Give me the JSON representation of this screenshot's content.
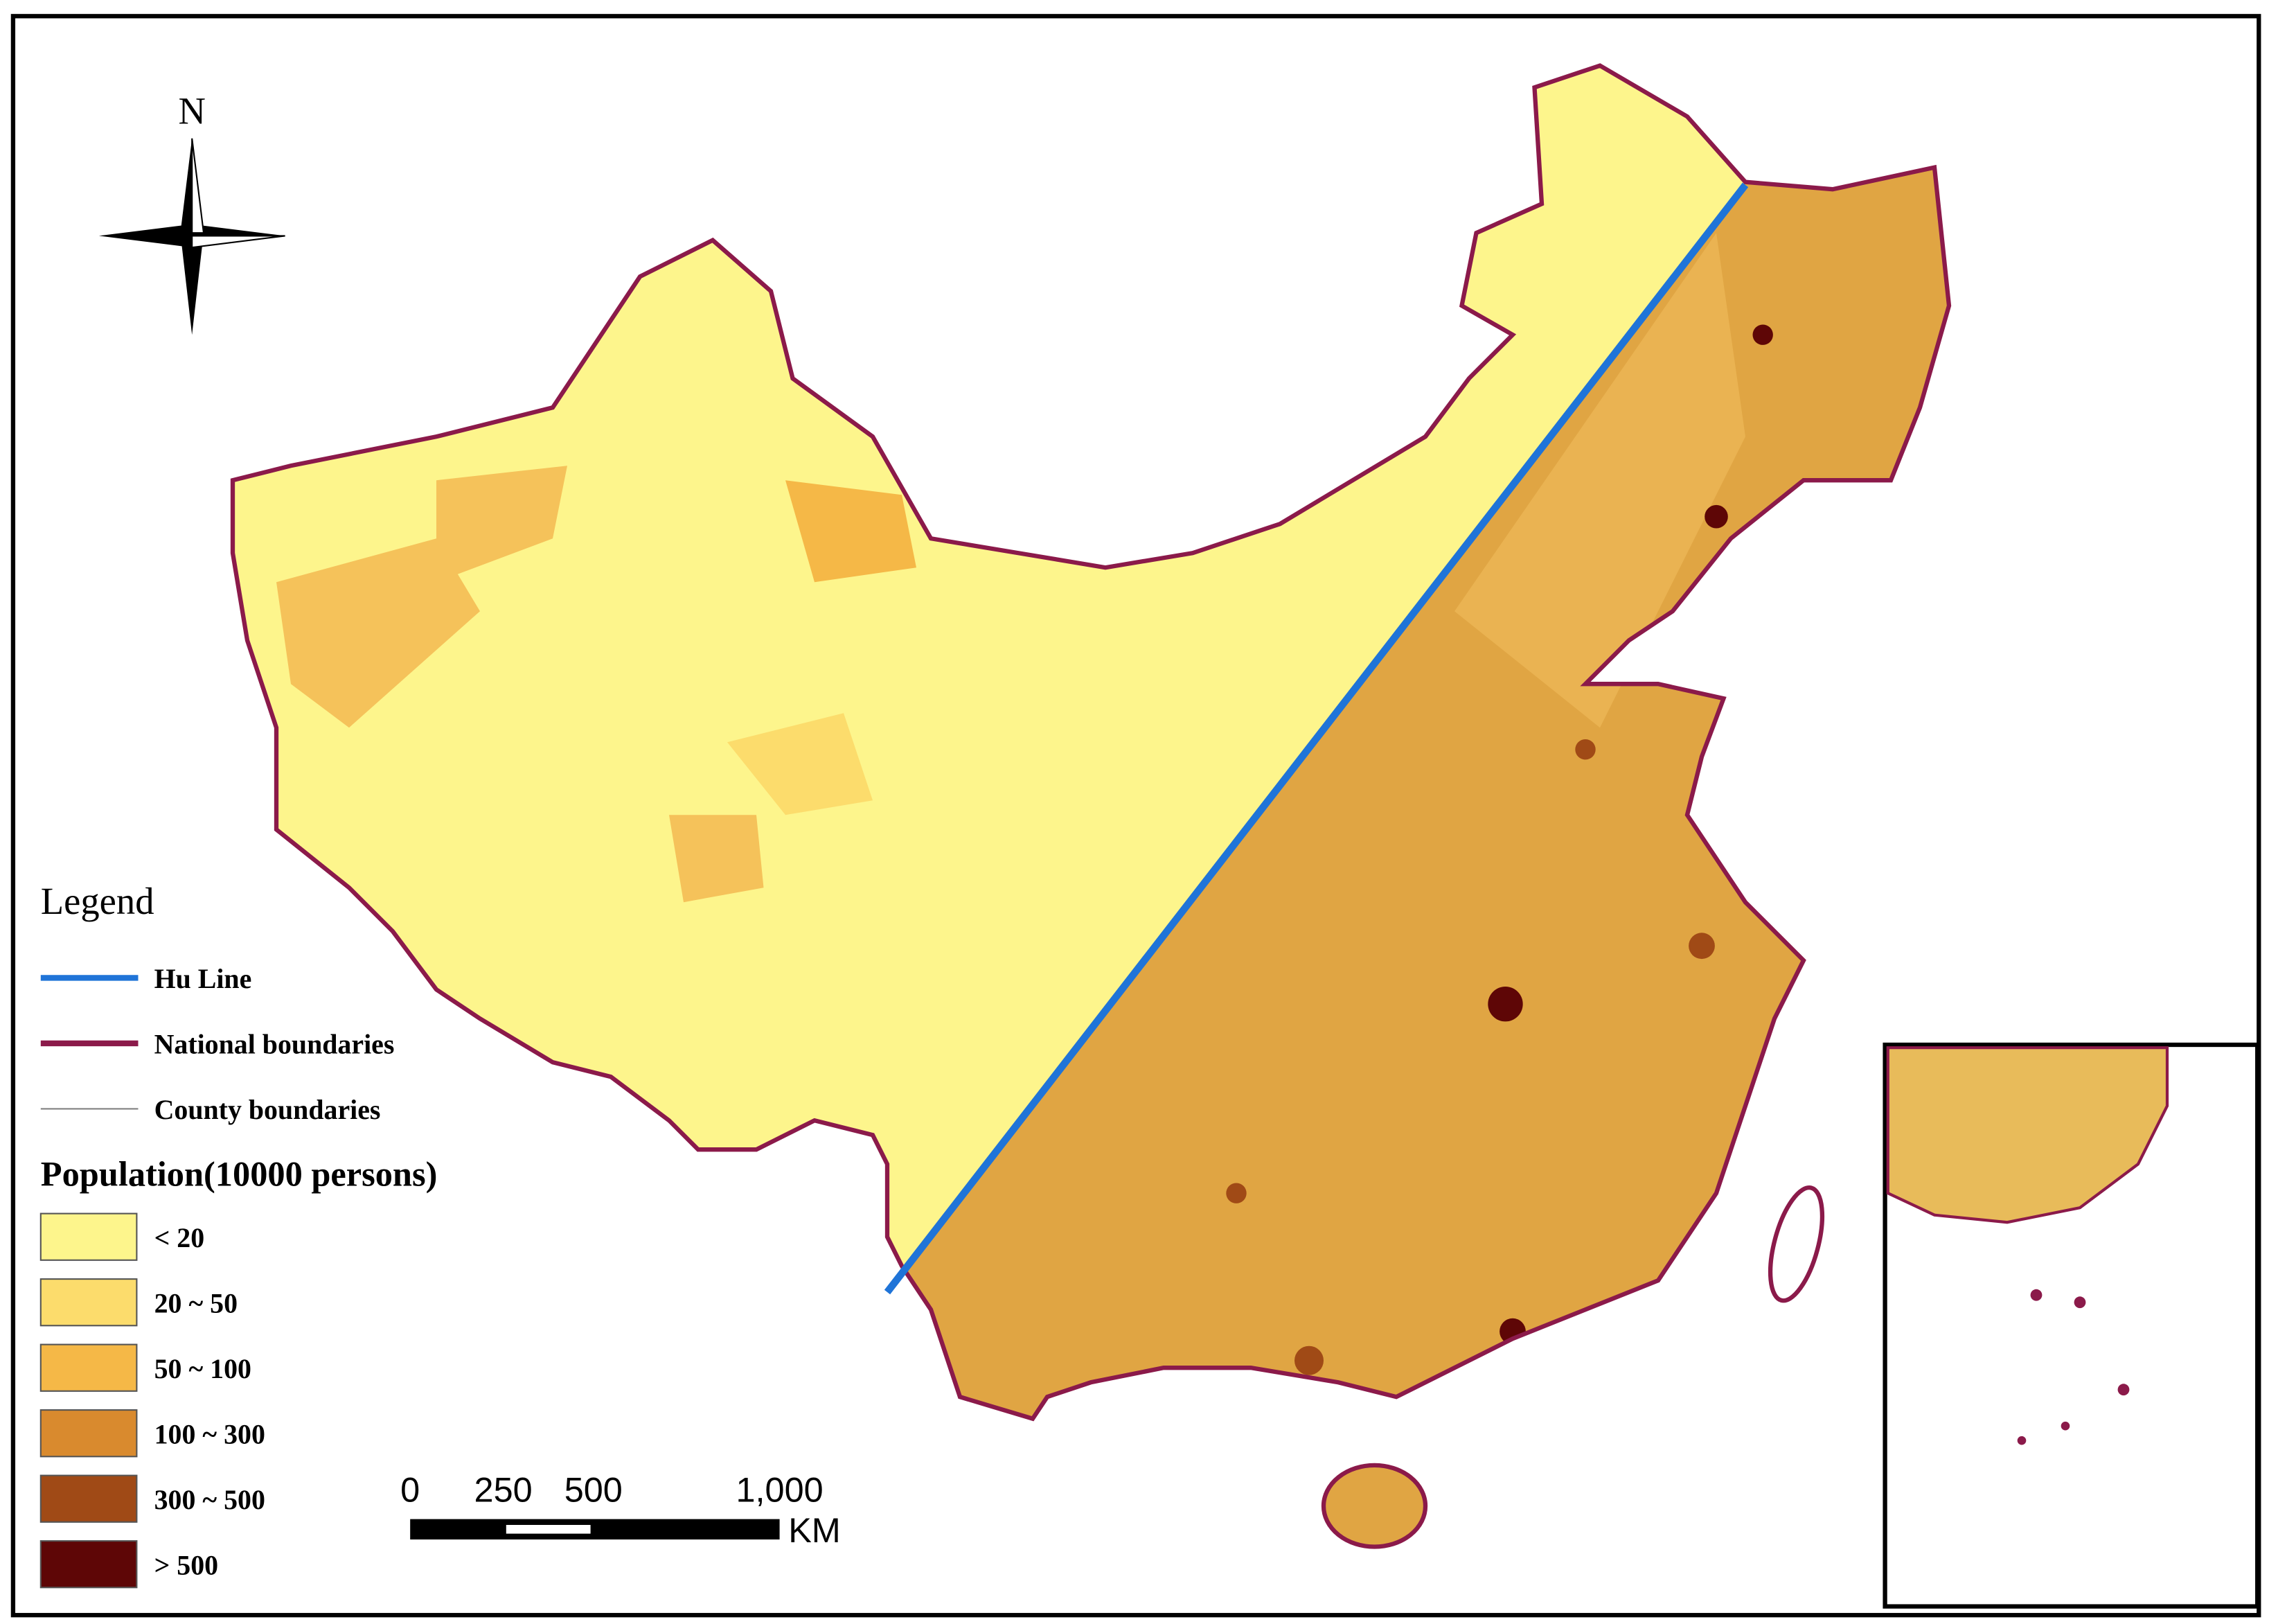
{
  "north_arrow": "N",
  "legend": {
    "title": "Legend",
    "lines": [
      {
        "label": "Hu Line",
        "color": "#1f74d8"
      },
      {
        "label": "National boundaries",
        "color": "#8b1a4a"
      },
      {
        "label": "County boundaries",
        "color": "#808080"
      }
    ],
    "population_title": "Population(10000 persons)",
    "classes": [
      {
        "label": "< 20",
        "color": "#fdf58c"
      },
      {
        "label": "20 ~ 50",
        "color": "#fcdc6c"
      },
      {
        "label": "50 ~ 100",
        "color": "#f5b847"
      },
      {
        "label": "100 ~  300",
        "color": "#d98a2e"
      },
      {
        "label": "300 ~ 500",
        "color": "#a04a16"
      },
      {
        "label": "> 500",
        "color": "#5e0606"
      }
    ]
  },
  "scale_bar": {
    "labels": [
      "0",
      "250",
      "500",
      "1,000"
    ],
    "unit": "KM"
  }
}
